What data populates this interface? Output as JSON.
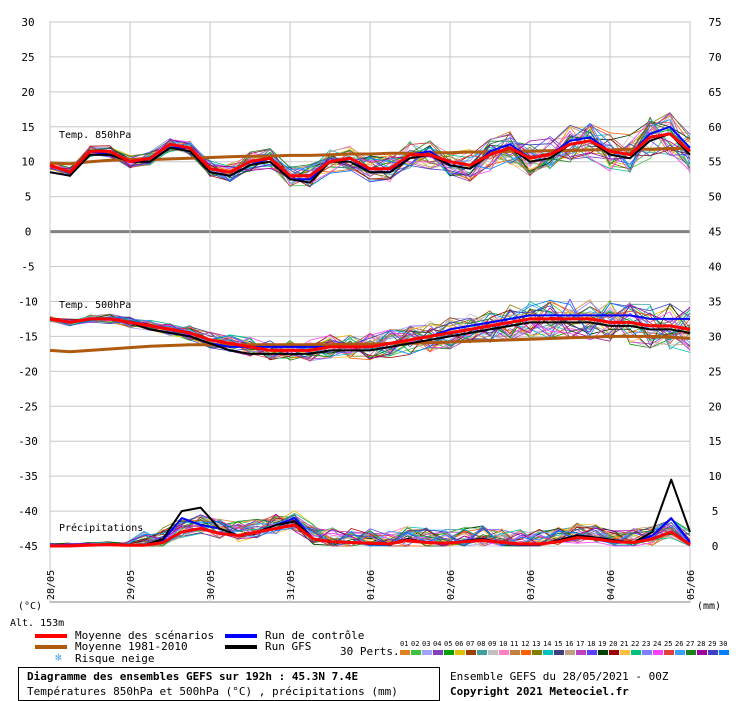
{
  "chart_data": [
    {
      "type": "line",
      "title": "Temp. 850hPa",
      "ylabel": "(°C)",
      "ylim_left": [
        -45,
        30
      ],
      "ylim_right": [
        0,
        75
      ],
      "x_unit_label": "(mm)",
      "x_labels": [
        "28/05",
        "29/05",
        "30/05",
        "31/05",
        "01/06",
        "02/06",
        "03/06",
        "04/06",
        "05/06"
      ],
      "grid": true,
      "series": [
        {
          "name": "Moyenne des scénarios",
          "color": "#ff0000",
          "values": [
            9.5,
            8.5,
            11.5,
            11.5,
            10,
            10.5,
            12.5,
            12,
            9,
            8.5,
            10,
            10.5,
            8,
            8,
            10,
            10.5,
            9,
            9,
            11,
            11,
            10,
            9.5,
            11,
            12,
            10.5,
            11,
            12.5,
            13,
            11.5,
            11,
            13.5,
            14,
            11.5
          ]
        },
        {
          "name": "Moyenne 1981-2010",
          "color": "#b05a10",
          "values": [
            9.8,
            9.7,
            10,
            10.2,
            10.3,
            10.3,
            10.4,
            10.5,
            10.6,
            10.7,
            10.8,
            10.8,
            10.9,
            10.9,
            11,
            11.1,
            11.1,
            11.2,
            11.2,
            11.3,
            11.3,
            11.4,
            11.4,
            11.5,
            11.5,
            11.6,
            11.6,
            11.7,
            11.7,
            11.8,
            11.8,
            11.9,
            11.9
          ]
        },
        {
          "name": "Run de contrôle",
          "color": "#0000ff",
          "values": [
            8.5,
            8,
            11.5,
            11,
            10,
            10,
            12,
            12,
            8.5,
            8,
            9.5,
            10.5,
            7.5,
            7.5,
            10,
            10.5,
            8.5,
            8.5,
            11,
            11.5,
            9.5,
            9,
            11.5,
            12.5,
            10.5,
            11,
            13,
            13.5,
            11.5,
            11,
            14,
            15,
            12
          ]
        },
        {
          "name": "Run GFS",
          "color": "#000000",
          "values": [
            8.5,
            8,
            11,
            11,
            10,
            10,
            12,
            11.5,
            8.5,
            8,
            9.5,
            10,
            7.5,
            7,
            10,
            10,
            8.5,
            8.5,
            10.5,
            11,
            9.5,
            9,
            11,
            12,
            10,
            10.5,
            12.5,
            13,
            11,
            10.5,
            13,
            14,
            11
          ]
        }
      ]
    },
    {
      "type": "line",
      "title": "Temp. 500hPa",
      "series": [
        {
          "name": "Moyenne des scénarios",
          "color": "#ff0000",
          "values": [
            -12.5,
            -13,
            -12.5,
            -12.5,
            -13,
            -13.5,
            -14,
            -14.5,
            -15.5,
            -16,
            -16.5,
            -17,
            -17,
            -17,
            -16.5,
            -16.5,
            -16.5,
            -16,
            -15.5,
            -15,
            -14.5,
            -14,
            -13.5,
            -13,
            -12.5,
            -12.5,
            -12.5,
            -12.5,
            -13,
            -13,
            -13.5,
            -13.5,
            -14
          ]
        },
        {
          "name": "Moyenne 1981-2010",
          "color": "#b05a10",
          "values": [
            -17,
            -17.2,
            -17,
            -16.8,
            -16.6,
            -16.4,
            -16.3,
            -16.2,
            -16.2,
            -16.2,
            -16.2,
            -16.2,
            -16.2,
            -16.2,
            -16.2,
            -16.1,
            -16.1,
            -16,
            -16,
            -15.9,
            -15.8,
            -15.7,
            -15.6,
            -15.5,
            -15.4,
            -15.3,
            -15.2,
            -15.1,
            -15,
            -15,
            -15,
            -15.1,
            -15.3
          ]
        },
        {
          "name": "Run de contrôle",
          "color": "#0000ff",
          "values": [
            -12.5,
            -13,
            -12.5,
            -12.5,
            -13,
            -14,
            -14.5,
            -15,
            -16,
            -16.5,
            -16.5,
            -16.5,
            -16.5,
            -16.5,
            -16.5,
            -16.5,
            -16.5,
            -16,
            -15.5,
            -15,
            -14,
            -13.5,
            -13,
            -12.5,
            -12,
            -12,
            -12,
            -12,
            -12,
            -12,
            -12.5,
            -12.5,
            -12.5
          ]
        },
        {
          "name": "Run GFS",
          "color": "#000000",
          "values": [
            -12.5,
            -13,
            -12.5,
            -12.5,
            -13,
            -14,
            -14.5,
            -15,
            -16,
            -17,
            -17.5,
            -17.5,
            -17.5,
            -17.5,
            -17,
            -17,
            -17,
            -16.5,
            -16,
            -15.5,
            -15,
            -14.5,
            -14,
            -13.5,
            -13,
            -13,
            -13,
            -13,
            -13.5,
            -13.5,
            -14,
            -14,
            -14.5
          ]
        }
      ]
    },
    {
      "type": "line",
      "title": "Précipitations",
      "series": [
        {
          "name": "Moyenne des scénarios",
          "color": "#ff0000",
          "values": [
            0,
            0,
            0.1,
            0.2,
            0.1,
            0.1,
            0.5,
            2,
            2.5,
            1.8,
            1.5,
            2,
            2.5,
            3,
            1,
            0.6,
            0.5,
            0.4,
            0.3,
            0.8,
            0.5,
            0.4,
            0.6,
            0.8,
            0.5,
            0.3,
            0.3,
            0.6,
            1.2,
            1,
            0.6,
            0.5,
            1,
            2,
            0.2
          ]
        },
        {
          "name": "Run de contrôle",
          "color": "#0000ff",
          "values": [
            0,
            0,
            0.1,
            0.2,
            0.1,
            0.1,
            0.8,
            4,
            3,
            2.5,
            1.5,
            2,
            3,
            4,
            1,
            0.5,
            0.5,
            0.3,
            0.2,
            1,
            0.5,
            0.3,
            0.7,
            1,
            0.5,
            0.2,
            0.2,
            0.8,
            1.5,
            1.2,
            0.8,
            0.5,
            1.5,
            4,
            0.5
          ]
        },
        {
          "name": "Run GFS",
          "color": "#000000",
          "values": [
            0,
            0,
            0.1,
            0.2,
            0.1,
            0.1,
            1,
            5,
            5.5,
            2.5,
            1.5,
            2,
            3,
            3.5,
            1,
            0.5,
            0.5,
            0.3,
            0.2,
            1,
            0.5,
            0.3,
            0.7,
            1,
            0.5,
            0.2,
            0.2,
            0.8,
            1.5,
            1.2,
            0.8,
            0.5,
            2,
            9.5,
            2
          ]
        }
      ]
    }
  ],
  "axis": {
    "left_ticks": [
      "30",
      "25",
      "20",
      "15",
      "10",
      "5",
      "0",
      "-5",
      "-10",
      "-15",
      "-20",
      "-25",
      "-30",
      "-35",
      "-40",
      "-45"
    ],
    "right_ticks": [
      "75",
      "70",
      "65",
      "60",
      "55",
      "50",
      "45",
      "40",
      "35",
      "30",
      "25",
      "20",
      "15",
      "10",
      "5",
      "0"
    ],
    "left_unit": "(°C)",
    "right_unit": "(mm)",
    "x_labels": [
      "28/05",
      "29/05",
      "30/05",
      "31/05",
      "01/06",
      "02/06",
      "03/06",
      "04/06",
      "05/06"
    ]
  },
  "labels": {
    "t850": "Temp. 850hPa",
    "t500": "Temp. 500hPa",
    "precip": "Précipitations",
    "altitude": "Alt. 153m"
  },
  "legend": {
    "moyenne_scenarios": "Moyenne des scénarios",
    "moyenne_1981": "Moyenne 1981-2010",
    "risque_neige": "Risque neige",
    "run_controle": "Run de contrôle",
    "run_gfs": "Run GFS",
    "perts_label": "30 Perts.",
    "perts_numbers": [
      "01",
      "02",
      "03",
      "04",
      "05",
      "06",
      "07",
      "08",
      "09",
      "10",
      "11",
      "12",
      "13",
      "14",
      "15",
      "16",
      "17",
      "18",
      "19",
      "20",
      "21",
      "22",
      "23",
      "24",
      "25",
      "26",
      "27",
      "28",
      "29",
      "30"
    ],
    "perts_colors": [
      "#e08020",
      "#40c040",
      "#a0a0ff",
      "#8040c0",
      "#00a000",
      "#e0c000",
      "#a04000",
      "#40a0a0",
      "#c0c0c0",
      "#ff80c0",
      "#c08040",
      "#ff6000",
      "#808000",
      "#00c0c0",
      "#404080",
      "#c0a080",
      "#c040c0",
      "#6040ff",
      "#004000",
      "#a00000",
      "#ffc040",
      "#00c080",
      "#8080ff",
      "#ff40ff",
      "#e04040",
      "#40a0ff",
      "#208020",
      "#a000a0",
      "#4040c0",
      "#0080ff"
    ]
  },
  "info": {
    "title": "Diagramme des ensembles GEFS sur 192h : 45.3N 7.4E",
    "subtitle": "Températures 850hPa et 500hPa (°C) , précipitations (mm)",
    "ensemble": "Ensemble GEFS du 28/05/2021 - 00Z",
    "copyright": "Copyright 2021 Meteociel.fr"
  },
  "colors": {
    "scenarios": "#ff0000",
    "clim": "#b05a10",
    "control": "#0000ff",
    "gfs": "#000000"
  }
}
